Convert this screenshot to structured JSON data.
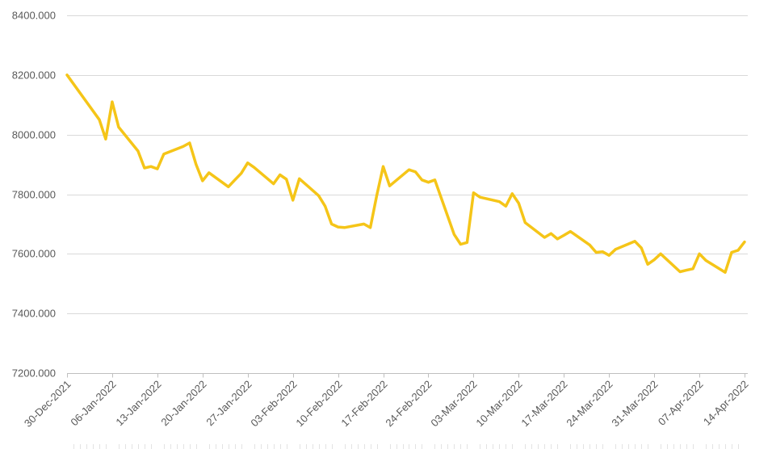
{
  "chart_data": {
    "type": "line",
    "title": "",
    "xlabel": "",
    "ylabel": "",
    "ylim": [
      7200,
      8400
    ],
    "y_ticks": [
      7200,
      7400,
      7600,
      7800,
      8000,
      8200,
      8400
    ],
    "y_tick_labels": [
      "7200.000",
      "7400.000",
      "7600.000",
      "7800.000",
      "8000.000",
      "8200.000",
      "8400.000"
    ],
    "xlim": [
      "2021-12-30",
      "2022-04-14"
    ],
    "x_ticks": [
      "2021-12-30",
      "2022-01-06",
      "2022-01-13",
      "2022-01-20",
      "2022-01-27",
      "2022-02-03",
      "2022-02-10",
      "2022-02-17",
      "2022-02-24",
      "2022-03-03",
      "2022-03-10",
      "2022-03-17",
      "2022-03-24",
      "2022-03-31",
      "2022-04-07",
      "2022-04-14"
    ],
    "x_tick_labels": [
      "30-Dec-2021",
      "06-Jan-2022",
      "13-Jan-2022",
      "20-Jan-2022",
      "27-Jan-2022",
      "03-Feb-2022",
      "10-Feb-2022",
      "17-Feb-2022",
      "24-Feb-2022",
      "03-Mar-2022",
      "10-Mar-2022",
      "17-Mar-2022",
      "24-Mar-2022",
      "31-Mar-2022",
      "07-Apr-2022",
      "14-Apr-2022"
    ],
    "grid": true,
    "legend": "none",
    "line_color": "#f5c518",
    "grid_color": "#d9d9d9",
    "series": [
      {
        "x": [
          "2021-12-30",
          "2022-01-04",
          "2022-01-05",
          "2022-01-06",
          "2022-01-07",
          "2022-01-10",
          "2022-01-11",
          "2022-01-12",
          "2022-01-13",
          "2022-01-14",
          "2022-01-17",
          "2022-01-18",
          "2022-01-19",
          "2022-01-20",
          "2022-01-21",
          "2022-01-24",
          "2022-01-25",
          "2022-01-26",
          "2022-01-27",
          "2022-01-28",
          "2022-01-31",
          "2022-02-01",
          "2022-02-02",
          "2022-02-03",
          "2022-02-04",
          "2022-02-07",
          "2022-02-08",
          "2022-02-09",
          "2022-02-10",
          "2022-02-11",
          "2022-02-14",
          "2022-02-15",
          "2022-02-16",
          "2022-02-17",
          "2022-02-18",
          "2022-02-21",
          "2022-02-22",
          "2022-02-23",
          "2022-02-24",
          "2022-02-25",
          "2022-02-28",
          "2022-03-01",
          "2022-03-02",
          "2022-03-03",
          "2022-03-04",
          "2022-03-07",
          "2022-03-08",
          "2022-03-09",
          "2022-03-10",
          "2022-03-11",
          "2022-03-14",
          "2022-03-15",
          "2022-03-16",
          "2022-03-17",
          "2022-03-18",
          "2022-03-21",
          "2022-03-22",
          "2022-03-23",
          "2022-03-24",
          "2022-03-25",
          "2022-03-28",
          "2022-03-29",
          "2022-03-30",
          "2022-03-31",
          "2022-04-01",
          "2022-04-04",
          "2022-04-05",
          "2022-04-06",
          "2022-04-07",
          "2022-04-08",
          "2022-04-11",
          "2022-04-12",
          "2022-04-13",
          "2022-04-14"
        ],
        "values": [
          8200,
          8050,
          7985,
          8110,
          8025,
          7945,
          7888,
          7893,
          7885,
          7935,
          7960,
          7972,
          7900,
          7845,
          7872,
          7825,
          7848,
          7870,
          7905,
          7890,
          7835,
          7865,
          7850,
          7780,
          7852,
          7795,
          7760,
          7700,
          7690,
          7688,
          7700,
          7688,
          7795,
          7893,
          7828,
          7882,
          7875,
          7848,
          7840,
          7848,
          7665,
          7632,
          7638,
          7805,
          7790,
          7775,
          7760,
          7802,
          7770,
          7705,
          7655,
          7668,
          7650,
          7662,
          7675,
          7630,
          7605,
          7607,
          7595,
          7615,
          7642,
          7620,
          7565,
          7580,
          7600,
          7540,
          7545,
          7550,
          7600,
          7578,
          7538,
          7605,
          7612,
          7640
        ]
      }
    ]
  }
}
